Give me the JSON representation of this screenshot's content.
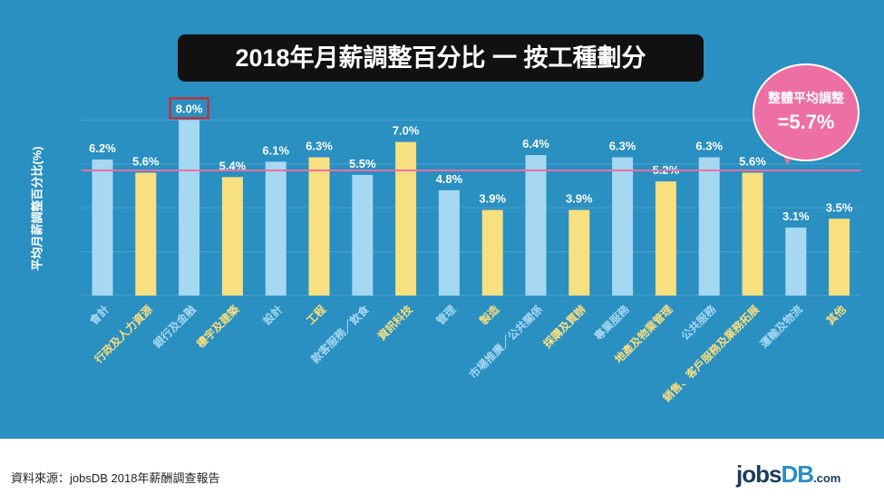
{
  "chart_data": {
    "type": "bar",
    "title": "2018年月薪調整百分比 一 按工種劃分",
    "ylabel": "平均月薪調整百分比(%)",
    "xlabel": "",
    "ylim": [
      0,
      8.5
    ],
    "grid": true,
    "categories": [
      "會計",
      "行政及人力資源",
      "銀行及金融",
      "樓宇及建築",
      "設計",
      "工程",
      "款客服務／飲食",
      "資訊科技",
      "管理",
      "製造",
      "市場推廣／公共關係",
      "採購及買辦",
      "專業服務",
      "地產及物業管理",
      "公共服務",
      "銷售、客戶服務及業務拓展",
      "運輸及物流",
      "其他"
    ],
    "values": [
      6.2,
      5.6,
      8.0,
      5.4,
      6.1,
      6.3,
      5.5,
      7.0,
      4.8,
      3.9,
      6.4,
      3.9,
      6.3,
      5.2,
      6.3,
      5.6,
      3.1,
      3.5
    ],
    "data_labels": [
      "6.2%",
      "5.6%",
      "8.0%",
      "5.4%",
      "6.1%",
      "6.3%",
      "5.5%",
      "7.0%",
      "4.8%",
      "3.9%",
      "6.4%",
      "3.9%",
      "6.3%",
      "5.2%",
      "6.3%",
      "5.6%",
      "3.1%",
      "3.5%"
    ],
    "highlighted_category": "銀行及金融",
    "reference_line": {
      "value": 5.7,
      "label_line1": "整體平均調整",
      "label_line2": "=5.7%"
    },
    "colors": {
      "background": "#2a8fc1",
      "bar_a": "#a6d8f2",
      "bar_b": "#f8df80",
      "reference": "#ee6fa3",
      "highlight_box": "#e02020"
    }
  },
  "footer": {
    "source": "資料來源：jobsDB 2018年薪酬調查報告",
    "logo_main": "jobs",
    "logo_db": "DB",
    "logo_suffix": ".com"
  }
}
